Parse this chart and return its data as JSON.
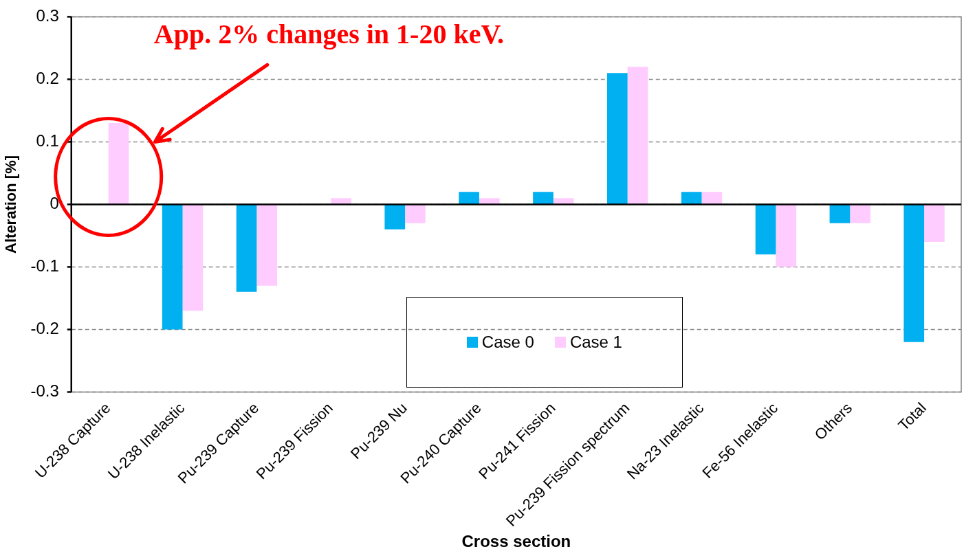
{
  "chart_data": {
    "type": "bar",
    "xlabel": "Cross section",
    "ylabel": "Alteration [%]",
    "categories": [
      "U-238 Capture",
      "U-238 Inelastic",
      "Pu-239 Capture",
      "Pu-239 Fission",
      "Pu-239 Nu",
      "Pu-240 Capture",
      "Pu-241 Fission",
      "Pu-239 Fission spectrum",
      "Na-23 Inelastic",
      "Fe-56 Inelastic",
      "Others",
      "Total"
    ],
    "series": [
      {
        "name": "Case 0",
        "color": "#00b0f0",
        "values": [
          0,
          -0.2,
          -0.14,
          0,
          -0.04,
          0.02,
          0.02,
          0.21,
          0.02,
          -0.08,
          -0.03,
          -0.22
        ]
      },
      {
        "name": "Case 1",
        "color": "#ffccff",
        "values": [
          0.13,
          -0.17,
          -0.13,
          0.01,
          -0.03,
          0.01,
          0.01,
          0.22,
          0.02,
          -0.1,
          -0.03,
          -0.06
        ]
      }
    ],
    "ylim": [
      -0.3,
      0.3
    ],
    "yticks": [
      -0.3,
      -0.2,
      -0.1,
      0,
      0.1,
      0.2,
      0.3
    ],
    "grid": "y",
    "legend": "bottom",
    "annotations": [
      "App. 2% changes in 1-20 keV."
    ]
  }
}
